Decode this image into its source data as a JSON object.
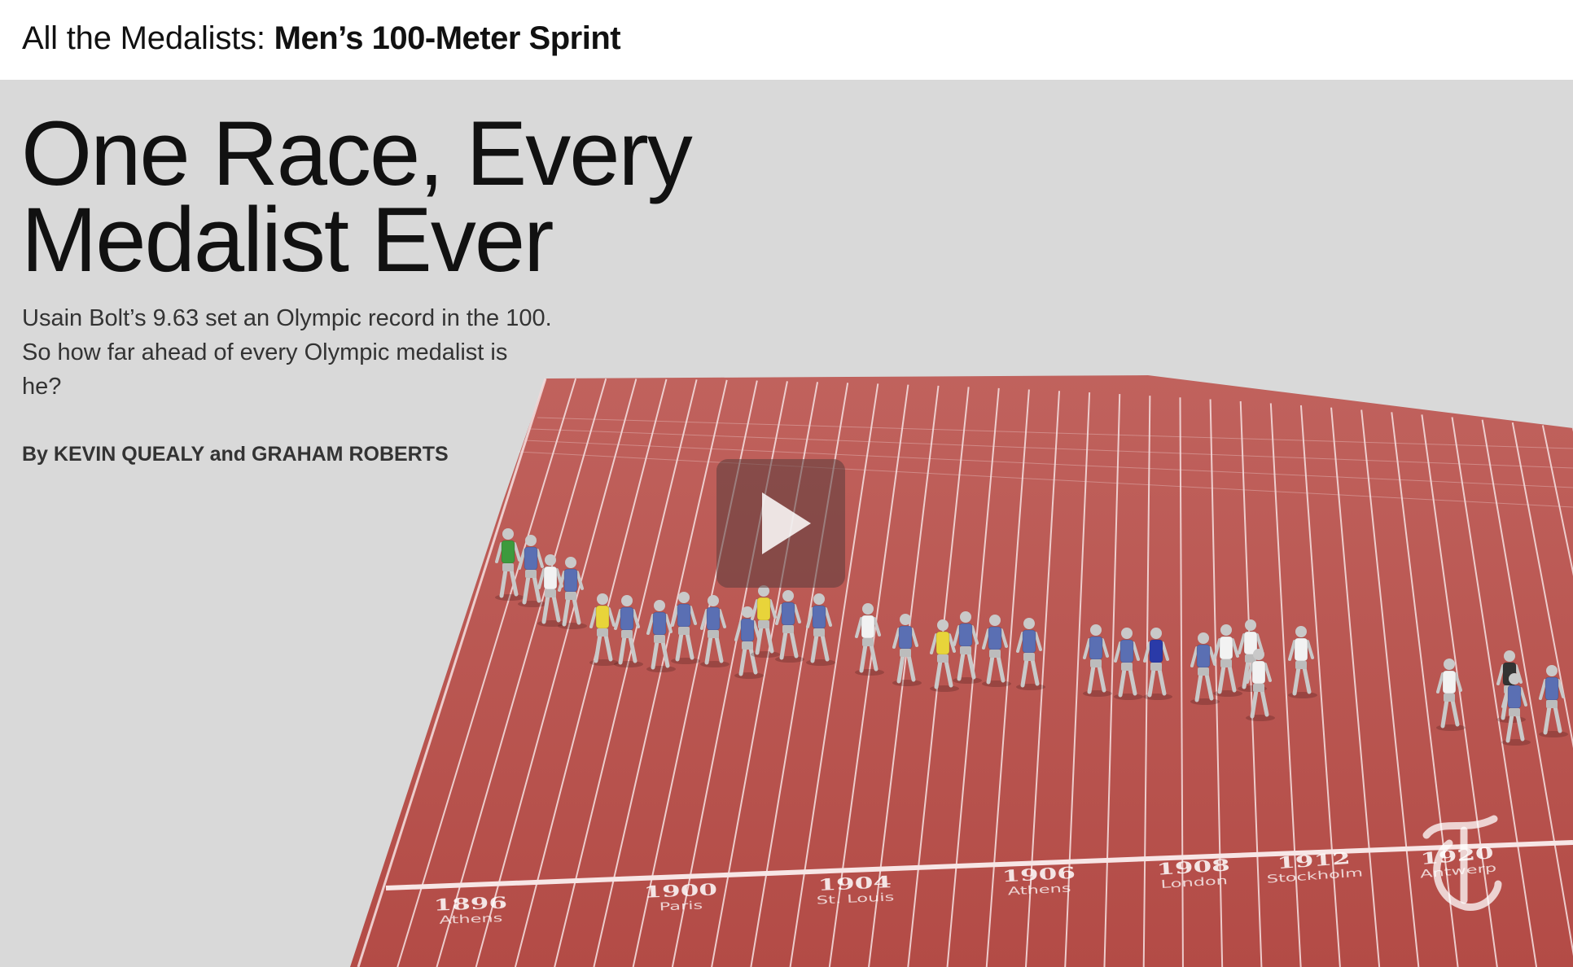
{
  "header": {
    "kicker_light": "All the Medalists: ",
    "kicker_bold": "Men’s 100-Meter Sprint"
  },
  "article": {
    "headline_line1": "One Race, Every",
    "headline_line2": "Medalist Ever",
    "dek_line1": "Usain Bolt’s 9.63 set an Olympic record in the 100.",
    "dek_line2": "So how far ahead of every Olympic medalist is",
    "dek_line3": "he?",
    "byline": "By KEVIN QUEALY and GRAHAM ROBERTS"
  },
  "track": {
    "markers": [
      {
        "year": "1896",
        "city": "Athens"
      },
      {
        "year": "1900",
        "city": "Paris"
      },
      {
        "year": "1904",
        "city": "St. Louis"
      },
      {
        "year": "1906",
        "city": "Athens"
      },
      {
        "year": "1908",
        "city": "London"
      },
      {
        "year": "1912",
        "city": "Stockholm"
      },
      {
        "year": "1920",
        "city": "Antwerp"
      }
    ]
  },
  "colors": {
    "background": "#d9d9d9",
    "track": "#b8504b",
    "track_far": "#bd5a54",
    "lane_line": "#f3dada",
    "runner_skin": "#c9c9c9",
    "vest_blue": "#5a6fb3",
    "vest_white": "#f2f2f2",
    "vest_yellow": "#e8d43a",
    "vest_green": "#3d9a3d",
    "vest_navy": "#2a3aa8",
    "vest_black": "#333333"
  },
  "icons": {
    "play": "play-icon",
    "logo": "nyt-t-logo-icon"
  }
}
